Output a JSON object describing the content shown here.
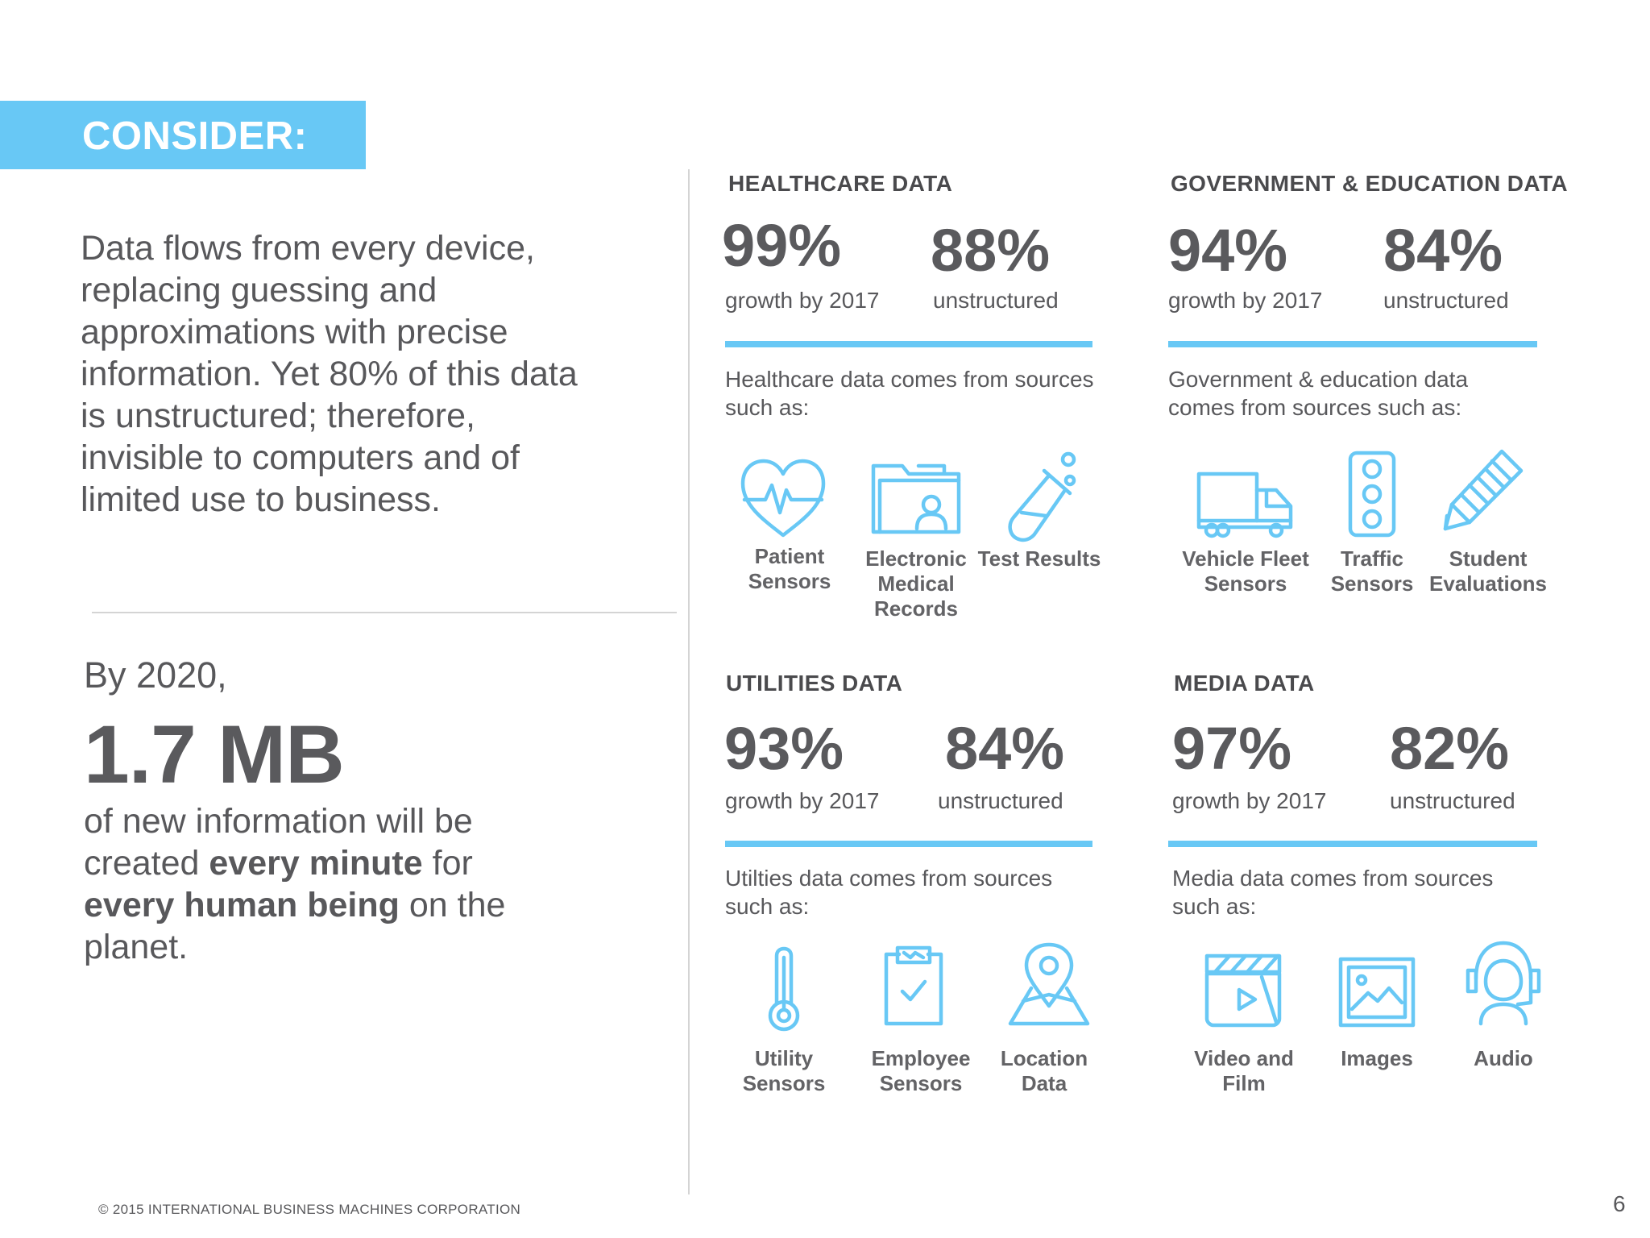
{
  "banner": {
    "label": "CONSIDER:"
  },
  "intro": {
    "text": "Data flows from every device, replacing guessing and approximations with precise information. Yet 80% of this data is unstructured; therefore, invisible to computers and of limited use to business."
  },
  "fact": {
    "lead": "By 2020,",
    "value": "1.7 MB",
    "p1": "of new information will be created ",
    "b1": "every minute",
    "p2": " for ",
    "b2": "every human being",
    "p3": " on the planet."
  },
  "sections": {
    "healthcare": {
      "title": "HEALTHCARE DATA",
      "stat1_value": "99%",
      "stat1_label": "growth by 2017",
      "stat2_value": "88%",
      "stat2_label": "unstructured",
      "source_text": "Healthcare data comes from sources such as:",
      "items": [
        {
          "label": "Patient Sensors",
          "icon": "heart-pulse-icon"
        },
        {
          "label": "Electronic Medical Records",
          "icon": "folder-person-icon"
        },
        {
          "label": "Test Results",
          "icon": "test-tube-icon"
        }
      ]
    },
    "government": {
      "title": "GOVERNMENT & EDUCATION DATA",
      "stat1_value": "94%",
      "stat1_label": "growth by 2017",
      "stat2_value": "84%",
      "stat2_label": "unstructured",
      "source_text": "Government & education data comes from sources such as:",
      "items": [
        {
          "label": "Vehicle Fleet Sensors",
          "icon": "truck-icon"
        },
        {
          "label": "Traffic Sensors",
          "icon": "traffic-light-icon"
        },
        {
          "label": "Student Evaluations",
          "icon": "pencil-icon"
        }
      ]
    },
    "utilities": {
      "title": "UTILITIES DATA",
      "stat1_value": "93%",
      "stat1_label": "growth by 2017",
      "stat2_value": "84%",
      "stat2_label": "unstructured",
      "source_text": "Utilties data comes from sources such as:",
      "items": [
        {
          "label": "Utility Sensors",
          "icon": "thermometer-icon"
        },
        {
          "label": "Employee Sensors",
          "icon": "clipboard-check-icon"
        },
        {
          "label": "Location Data",
          "icon": "map-pin-icon"
        }
      ]
    },
    "media": {
      "title": "MEDIA DATA",
      "stat1_value": "97%",
      "stat1_label": "growth by 2017",
      "stat2_value": "82%",
      "stat2_label": "unstructured",
      "source_text": "Media data comes from sources such as:",
      "items": [
        {
          "label": "Video and Film",
          "icon": "clapperboard-icon"
        },
        {
          "label": "Images",
          "icon": "image-icon"
        },
        {
          "label": "Audio",
          "icon": "headset-icon"
        }
      ]
    }
  },
  "footer": {
    "copyright": "© 2015 INTERNATIONAL BUSINESS MACHINES CORPORATION",
    "page": "6"
  },
  "colors": {
    "accent": "#68c8f5",
    "text": "#58585b",
    "rule": "#d4d4d4"
  }
}
